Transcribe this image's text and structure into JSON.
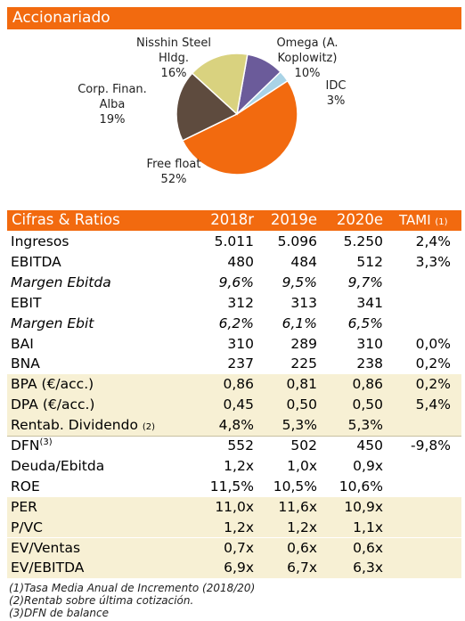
{
  "header": {
    "title": "Accionariado"
  },
  "chart_data": {
    "type": "pie",
    "categories": [
      "Omega (A. Koplowitz)",
      "IDC",
      "Free float",
      "Corp. Finan. Alba",
      "Nisshin Steel Hldg."
    ],
    "values": [
      10,
      3,
      52,
      19,
      16
    ],
    "value_labels": [
      "10%",
      "3%",
      "52%",
      "19%",
      "16%"
    ],
    "colors": [
      "#6b5b9a",
      "#a9d3e6",
      "#f26a0f",
      "#5e4b3e",
      "#d9d27f"
    ]
  },
  "table": {
    "header": [
      "Cifras & Ratios",
      "2018r",
      "2019e",
      "2020e",
      "TAMI"
    ],
    "header_note": "(1)",
    "rows": [
      {
        "label": "Ingresos",
        "values": [
          "5.011",
          "5.096",
          "5.250",
          "2,4%"
        ]
      },
      {
        "label": "EBITDA",
        "values": [
          "480",
          "484",
          "512",
          "3,3%"
        ]
      },
      {
        "label": "Margen Ebitda",
        "values": [
          "9,6%",
          "9,5%",
          "9,7%",
          null
        ]
      },
      {
        "label": "EBIT",
        "values": [
          "312",
          "313",
          "341",
          null
        ]
      },
      {
        "label": "Margen Ebit",
        "values": [
          "6,2%",
          "6,1%",
          "6,5%",
          null
        ]
      },
      {
        "label": "BAI",
        "values": [
          "310",
          "289",
          "310",
          "0,0%"
        ]
      },
      {
        "label": "BNA",
        "values": [
          "237",
          "225",
          "238",
          "0,2%"
        ]
      },
      {
        "label": "BPA (€/acc.)",
        "values": [
          "0,86",
          "0,81",
          "0,86",
          "0,2%"
        ]
      },
      {
        "label": "DPA (€/acc.)",
        "values": [
          "0,45",
          "0,50",
          "0,50",
          "5,4%"
        ]
      },
      {
        "label": "Rentab. Dividendo",
        "note": "(2)",
        "values": [
          "4,8%",
          "5,3%",
          "5,3%",
          null
        ]
      },
      {
        "label": "DFN",
        "sup": "(3)",
        "values": [
          "552",
          "502",
          "450",
          "-9,8%"
        ]
      },
      {
        "label": "Deuda/Ebitda",
        "values": [
          "1,2x",
          "1,0x",
          "0,9x",
          null
        ]
      },
      {
        "label": "ROE",
        "values": [
          "11,5%",
          "10,5%",
          "10,6%",
          null
        ]
      },
      {
        "label": "PER",
        "values": [
          "11,0x",
          "11,6x",
          "10,9x",
          null
        ]
      },
      {
        "label": "P/VC",
        "values": [
          "1,2x",
          "1,2x",
          "1,1x",
          null
        ]
      },
      {
        "label": "EV/Ventas",
        "values": [
          "0,7x",
          "0,6x",
          "0,6x",
          null
        ]
      },
      {
        "label": "EV/EBITDA",
        "values": [
          "6,9x",
          "6,7x",
          "6,3x",
          null
        ]
      }
    ],
    "footnotes": [
      "(1)Tasa Media Anual de Incremento (2018/20)",
      "(2)Rentab sobre última cotización.",
      "(3)DFN de balance"
    ]
  }
}
